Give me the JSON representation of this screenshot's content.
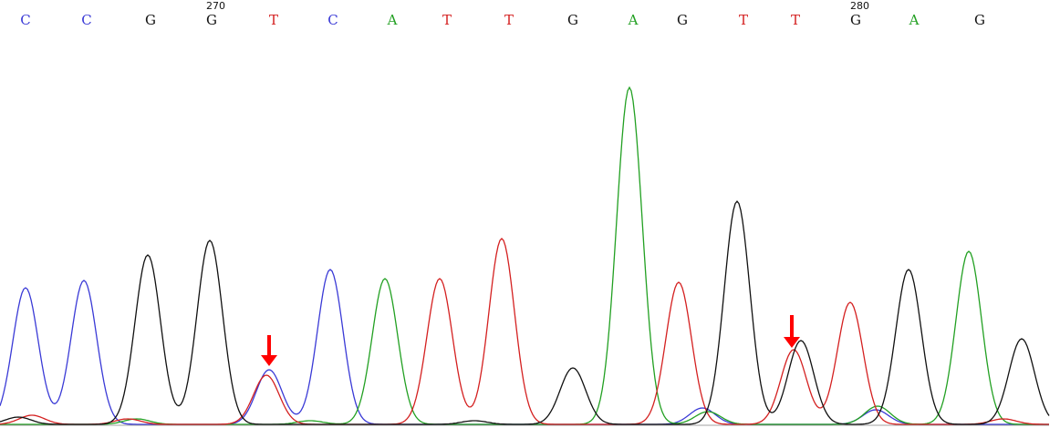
{
  "chart_data": {
    "type": "line",
    "title": "",
    "xlabel": "",
    "ylabel": "",
    "grid": false,
    "legend": "none",
    "position_labels": [
      "270",
      "280"
    ],
    "colors": {
      "A": "#22a022",
      "C": "#3a3ad6",
      "G": "#111111",
      "T": "#d42020",
      "arrow": "#ff0000"
    },
    "bases": [
      "C",
      "C",
      "G",
      "G",
      "T",
      "C",
      "A",
      "T",
      "T",
      "G",
      "A",
      "G",
      "T",
      "T",
      "G",
      "A",
      "G"
    ],
    "series": [
      {
        "name": "C",
        "peaks": [
          [
            28,
            150
          ],
          [
            92,
            158
          ],
          [
            295,
            60
          ],
          [
            362,
            170
          ],
          [
            770,
            18
          ],
          [
            960,
            16
          ]
        ]
      },
      {
        "name": "G",
        "peaks": [
          [
            162,
            186
          ],
          [
            230,
            202
          ],
          [
            628,
            62
          ],
          [
            808,
            245
          ],
          [
            878,
            92
          ],
          [
            996,
            170
          ],
          [
            1120,
            94
          ],
          [
            20,
            8
          ],
          [
            520,
            4
          ]
        ]
      },
      {
        "name": "T",
        "peaks": [
          [
            292,
            54
          ],
          [
            482,
            160
          ],
          [
            550,
            204
          ],
          [
            744,
            156
          ],
          [
            870,
            82
          ],
          [
            932,
            134
          ],
          [
            35,
            10
          ],
          [
            140,
            6
          ],
          [
            1100,
            6
          ]
        ]
      },
      {
        "name": "A",
        "peaks": [
          [
            422,
            160
          ],
          [
            690,
            370
          ],
          [
            1062,
            190
          ],
          [
            776,
            14
          ],
          [
            962,
            20
          ],
          [
            150,
            6
          ],
          [
            340,
            4
          ]
        ]
      }
    ],
    "arrows": [
      {
        "base_index": 4,
        "x": 295
      },
      {
        "base_index": 13,
        "x": 868
      }
    ]
  }
}
